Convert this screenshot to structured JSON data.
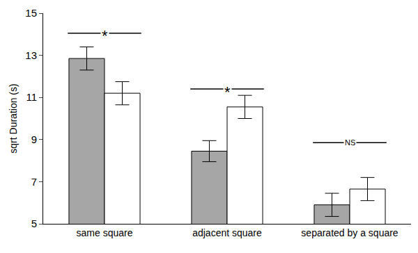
{
  "chart_data": {
    "type": "bar",
    "categories": [
      "same square",
      "adjacent square",
      "separated by a square"
    ],
    "series": [
      {
        "color": "#a6a6a6",
        "values": [
          12.85,
          8.45,
          5.9
        ],
        "errors": [
          0.55,
          0.5,
          0.55
        ]
      },
      {
        "color": "#ffffff",
        "values": [
          11.2,
          10.55,
          6.65
        ],
        "errors": [
          0.55,
          0.55,
          0.55
        ]
      }
    ],
    "y_label": "sqrt Duration (s)",
    "ylim": [
      5,
      15
    ],
    "yticks": [
      5,
      7,
      9,
      11,
      13,
      15
    ],
    "grid": false,
    "annotations": [
      {
        "category": "same square",
        "y": 14.05,
        "text": "*"
      },
      {
        "category": "adjacent square",
        "y": 11.4,
        "text": "*"
      },
      {
        "category": "separated by a square",
        "y": 8.85,
        "text": "NS"
      }
    ]
  }
}
